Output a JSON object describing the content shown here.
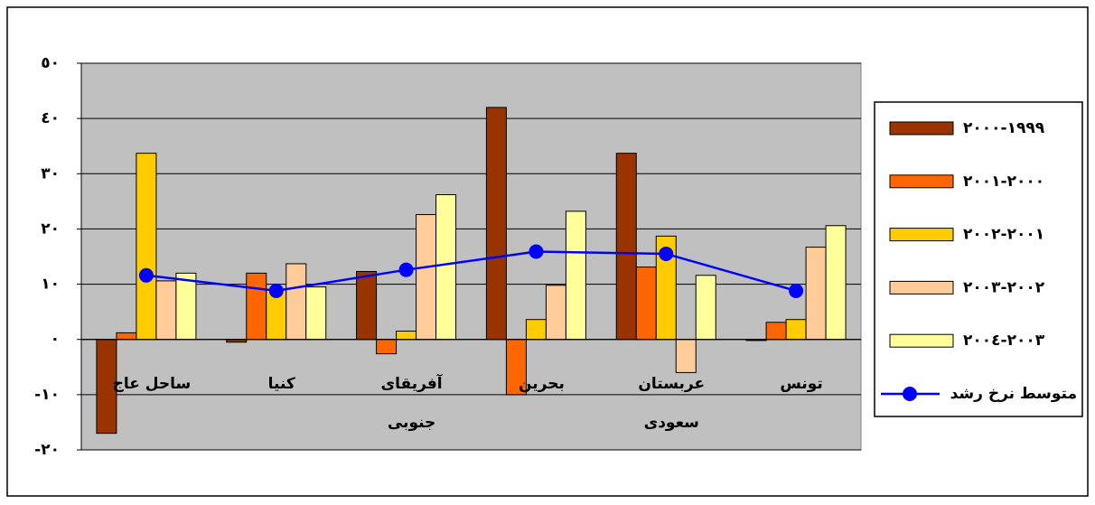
{
  "chart_data": {
    "type": "bar",
    "categories": [
      [
        "ساحل عاج"
      ],
      [
        "کنیا"
      ],
      [
        "آفریقای",
        "جنوبی"
      ],
      [
        "بحرین"
      ],
      [
        "عربستان",
        "سعودی"
      ],
      [
        "تونس"
      ]
    ],
    "series": [
      {
        "name": "١٩٩٩-٢٠٠٠",
        "color": "#993300",
        "values": [
          -17,
          -0.5,
          12.3,
          42,
          33.7,
          -0.2
        ]
      },
      {
        "name": "٢٠٠٠-٢٠٠١",
        "color": "#FF6600",
        "values": [
          1.2,
          12,
          -2.6,
          -10,
          13.1,
          3.1
        ]
      },
      {
        "name": "٢٠٠١-٢٠٠٢",
        "color": "#FFCC00",
        "values": [
          33.7,
          9,
          1.5,
          3.6,
          18.7,
          3.6
        ]
      },
      {
        "name": "٢٠٠٢-٢٠٠٣",
        "color": "#FFCC99",
        "values": [
          10.6,
          13.7,
          22.6,
          9.8,
          -6,
          16.7
        ]
      },
      {
        "name": "٢٠٠٣-٢٠٠٤",
        "color": "#FFFF99",
        "values": [
          12,
          9.5,
          26.2,
          23.2,
          11.6,
          20.6
        ]
      },
      {
        "name": "متوسط نرخ رشد",
        "color": "#0000FF",
        "type": "line",
        "values": [
          11.6,
          8.8,
          12.6,
          15.9,
          15.5,
          8.8
        ]
      }
    ],
    "ylim": [
      -20,
      50
    ],
    "yticks": [
      {
        "value": -20,
        "label": "-٢٠"
      },
      {
        "value": -10,
        "label": "-١٠"
      },
      {
        "value": 0,
        "label": "٠"
      },
      {
        "value": 10,
        "label": "١٠"
      },
      {
        "value": 20,
        "label": "٢٠"
      },
      {
        "value": 30,
        "label": "٣٠"
      },
      {
        "value": 40,
        "label": "٤٠"
      },
      {
        "value": 50,
        "label": "٥٠"
      }
    ],
    "grid": true,
    "legend": "right",
    "plot_background": "#C0C0C0"
  }
}
